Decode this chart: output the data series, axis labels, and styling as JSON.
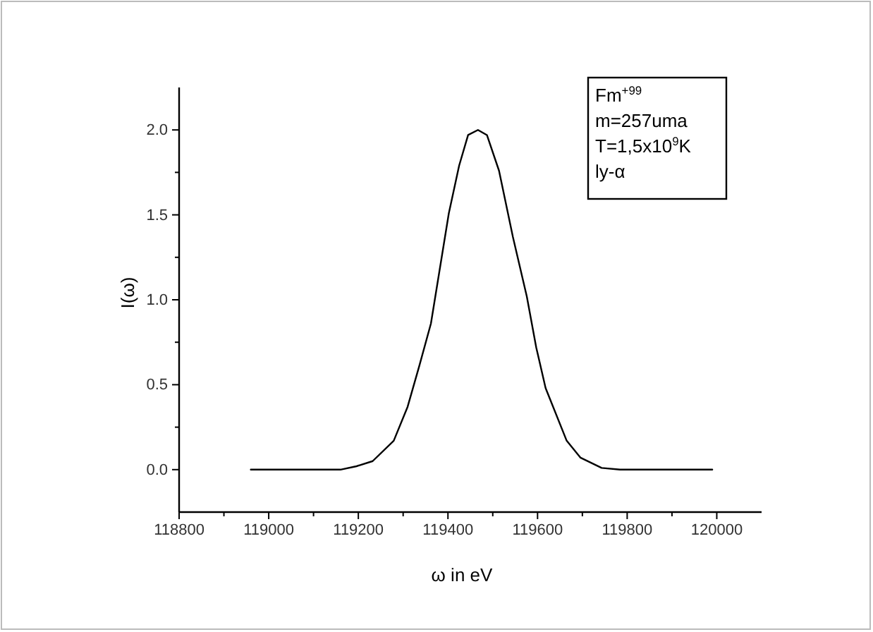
{
  "chart_data": {
    "type": "line",
    "xlabel": "ω in eV",
    "ylabel": "I(ω)",
    "annotations": [
      "Fm$^{+99}$",
      "m=257uma",
      "T=1,5x10$^{9}$K",
      "ly-α"
    ],
    "x": [
      118960,
      119160,
      119196,
      119232,
      119279,
      119310,
      119336,
      119362,
      119402,
      119425,
      119445,
      119467,
      119487,
      119514,
      119545,
      119576,
      119597,
      119618,
      119665,
      119696,
      119743,
      119784,
      119990
    ],
    "series": [
      {
        "color": "#000000",
        "values": [
          0,
          0,
          0.02,
          0.05,
          0.17,
          0.37,
          0.61,
          0.86,
          1.51,
          1.79,
          1.97,
          2.0,
          1.97,
          1.76,
          1.37,
          1.02,
          0.72,
          0.48,
          0.17,
          0.07,
          0.01,
          0,
          0
        ]
      }
    ],
    "xlim": [
      118800,
      120100
    ],
    "xticks": [
      118800,
      119000,
      119200,
      119400,
      119600,
      119800,
      120000
    ],
    "ylim": [
      -0.25,
      2.25
    ],
    "yticks": [
      {
        "value": 0,
        "label": "0.0"
      },
      {
        "value": 0.5,
        "label": "0.5"
      },
      {
        "value": 1,
        "label": "1.0"
      },
      {
        "value": 1.5,
        "label": "1.5"
      },
      {
        "value": 2,
        "label": "2.0"
      }
    ],
    "grid": false,
    "marker": "none",
    "line_style": "solid"
  }
}
